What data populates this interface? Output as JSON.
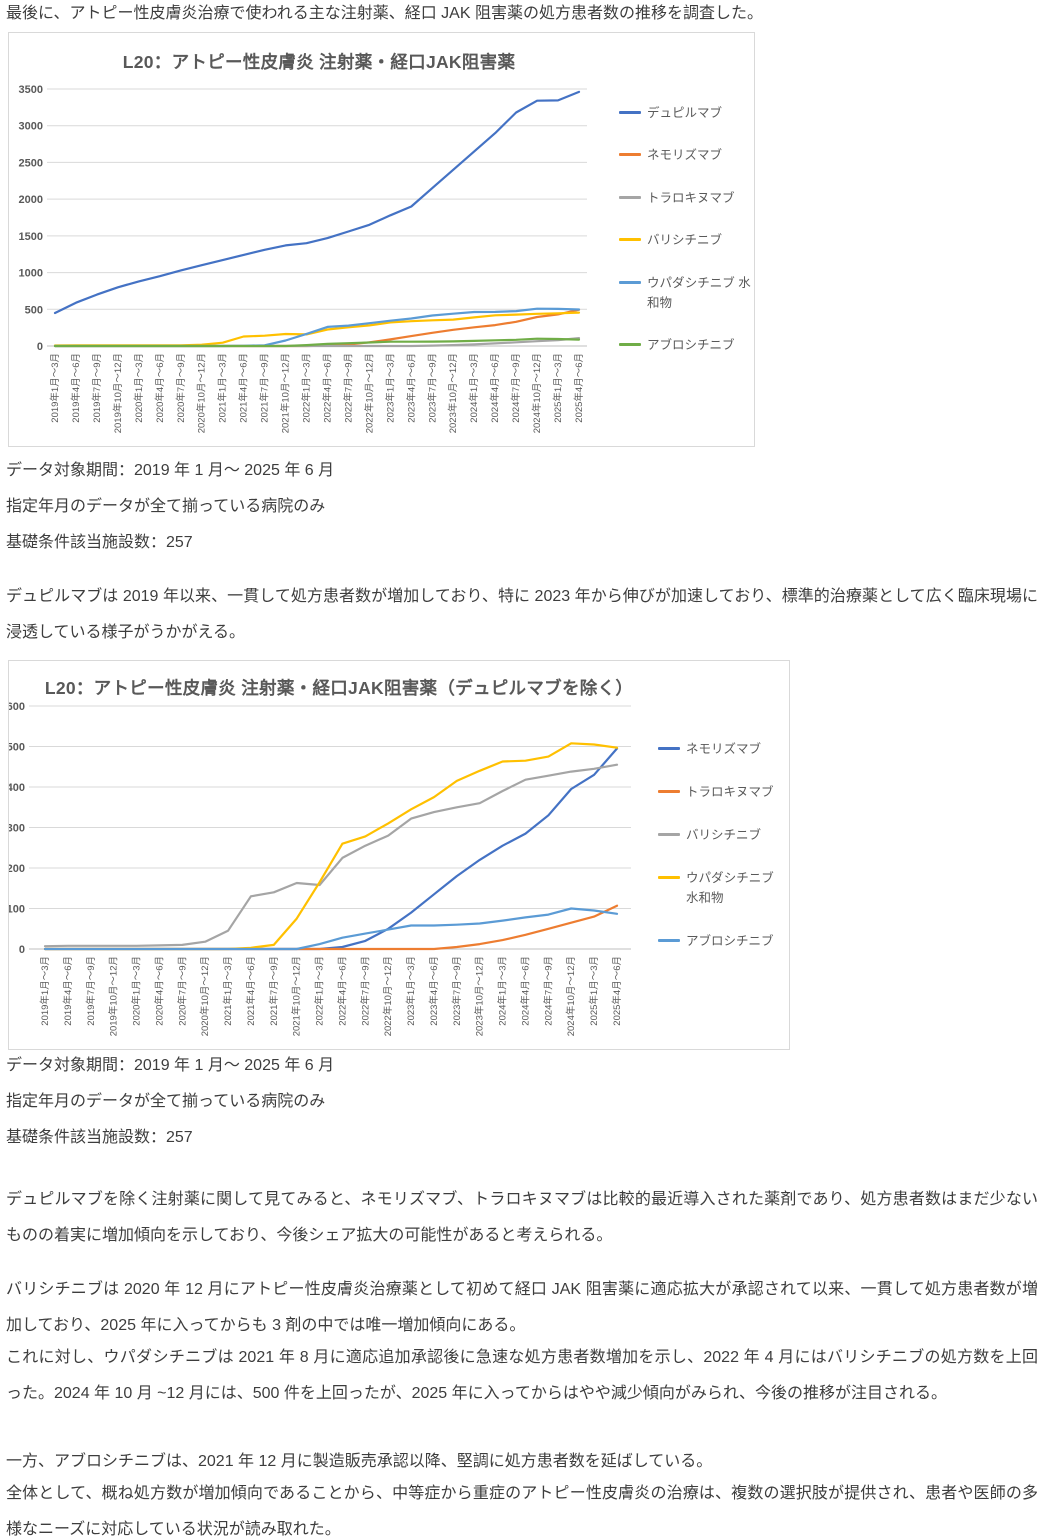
{
  "page": {
    "intro": "最後に、アトピー性皮膚炎治療で使われる主な注射薬、経口 JAK 阻害薬の処方患者数の推移を調査した。",
    "caption": {
      "period": "データ対象期間：2019 年 1 月～ 2025 年 6 月",
      "filter": "指定年月のデータが全て揃っている病院のみ",
      "facilities": "基礎条件該当施設数：257"
    },
    "para_dupilumab": "デュピルマブは 2019 年以来、一貫して処方患者数が増加しており、特に 2023 年から伸びが加速しており、標準的治療薬として広く臨床現場に浸透している様子がうかがえる。",
    "para_exclude": "デュピルマブを除く注射薬に関して見てみると、ネモリズマブ、トラロキヌマブは比較的最近導入された薬剤であり、処方患者数はまだ少ないものの着実に増加傾向を示しており、今後シェア拡大の可能性があると考えられる。",
    "para_baricitinib": "バリシチニブは 2020 年 12 月にアトピー性皮膚炎治療薬として初めて経口 JAK 阻害薬に適応拡大が承認されて以来、一貫して処方患者数が増加しており、2025 年に入ってからも 3 剤の中では唯一増加傾向にある。",
    "para_upadacitinib": "これに対し、ウパダシチニブは 2021 年 8 月に適応追加承認後に急速な処方患者数増加を示し、2022 年 4 月にはバリシチニブの処方数を上回った。2024 年 10 月 ~12 月には、500 件を上回ったが、2025 年に入ってからはやや減少傾向がみられ、今後の推移が注目される。",
    "para_abrocitinib": "一方、アブロシチニブは、2021 年 12 月に製造販売承認以降、堅調に処方患者数を延ばしている。",
    "para_overall": "全体として、概ね処方数が増加傾向であることから、中等症から重症のアトピー性皮膚炎の治療は、複数の選択肢が提供され、患者や医師の多様なニーズに対応している状況が読み取れた。"
  },
  "chart_data": [
    {
      "type": "line",
      "title": "L20：アトピー性皮膚炎 注射薬・経口JAK阻害薬",
      "xlabel": "",
      "ylabel": "",
      "ylim": [
        0,
        3500
      ],
      "ytick": 500,
      "grid": true,
      "legend_position": "right",
      "categories": [
        "2019年1月～3月",
        "2019年4月～6月",
        "2019年7月～9月",
        "2019年10月～12月",
        "2020年1月～3月",
        "2020年4月～6月",
        "2020年7月～9月",
        "2020年10月～12月",
        "2021年1月～3月",
        "2021年4月～6月",
        "2021年7月～9月",
        "2021年10月～12月",
        "2022年1月～3月",
        "2022年4月～6月",
        "2022年7月～9月",
        "2022年10月～12月",
        "2023年1月～3月",
        "2023年4月～6月",
        "2023年7月～9月",
        "2023年10月～12月",
        "2024年1月～3月",
        "2024年4月～6月",
        "2024年7月～9月",
        "2024年10月～12月",
        "2025年1月～3月",
        "2025年4月～6月"
      ],
      "series": [
        {
          "name": "デュピルマブ",
          "color": "#4472C4",
          "values": [
            450,
            590,
            700,
            800,
            880,
            950,
            1030,
            1100,
            1170,
            1240,
            1310,
            1370,
            1400,
            1470,
            1560,
            1650,
            1780,
            1900,
            2150,
            2400,
            2650,
            2900,
            3180,
            3340,
            3345,
            3460
          ]
        },
        {
          "name": "ネモリズマブ",
          "color": "#ED7D31",
          "values": [
            0,
            0,
            0,
            0,
            0,
            0,
            0,
            0,
            0,
            0,
            0,
            0,
            0,
            5,
            20,
            50,
            90,
            135,
            180,
            220,
            255,
            285,
            330,
            395,
            430,
            495
          ]
        },
        {
          "name": "トラロキヌマブ",
          "color": "#A5A5A5",
          "values": [
            0,
            0,
            0,
            0,
            0,
            0,
            0,
            0,
            0,
            0,
            0,
            0,
            0,
            0,
            0,
            0,
            0,
            0,
            5,
            12,
            22,
            35,
            50,
            65,
            80,
            107
          ]
        },
        {
          "name": "バリシチニブ",
          "color": "#FFC000",
          "values": [
            7,
            8,
            8,
            8,
            8,
            9,
            10,
            18,
            45,
            130,
            140,
            163,
            158,
            225,
            255,
            280,
            322,
            338,
            350,
            360,
            390,
            418,
            428,
            438,
            445,
            455
          ]
        },
        {
          "name": "ウパダシチニブ 水和物",
          "color": "#5B9BD5",
          "values": [
            0,
            0,
            0,
            0,
            0,
            0,
            0,
            0,
            0,
            3,
            10,
            75,
            165,
            260,
            278,
            310,
            345,
            375,
            415,
            440,
            463,
            465,
            475,
            508,
            505,
            497
          ]
        },
        {
          "name": "アブロシチニブ",
          "color": "#70AD47",
          "values": [
            0,
            0,
            0,
            0,
            0,
            0,
            0,
            0,
            0,
            0,
            0,
            0,
            12,
            28,
            38,
            48,
            58,
            58,
            60,
            63,
            70,
            78,
            85,
            100,
            95,
            87
          ]
        }
      ]
    },
    {
      "type": "line",
      "title": "L20：アトピー性皮膚炎 注射薬・経口JAK阻害薬（デュピルマブを除く）",
      "xlabel": "",
      "ylabel": "",
      "ylim": [
        0,
        600
      ],
      "ytick": 100,
      "grid": true,
      "legend_position": "right",
      "categories": [
        "2019年1月～3月",
        "2019年4月～6月",
        "2019年7月～9月",
        "2019年10月～12月",
        "2020年1月～3月",
        "2020年4月～6月",
        "2020年7月～9月",
        "2020年10月～12月",
        "2021年1月～3月",
        "2021年4月～6月",
        "2021年7月～9月",
        "2021年10月～12月",
        "2022年1月～3月",
        "2022年4月～6月",
        "2022年7月～9月",
        "2022年10月～12月",
        "2023年1月～3月",
        "2023年4月～6月",
        "2023年7月～9月",
        "2023年10月～12月",
        "2024年1月～3月",
        "2024年4月～6月",
        "2024年7月～9月",
        "2024年10月～12月",
        "2025年1月～3月",
        "2025年4月～6月"
      ],
      "series": [
        {
          "name": "ネモリズマブ",
          "color": "#4472C4",
          "values": [
            0,
            0,
            0,
            0,
            0,
            0,
            0,
            0,
            0,
            0,
            0,
            0,
            0,
            5,
            20,
            50,
            90,
            135,
            180,
            220,
            255,
            285,
            330,
            395,
            430,
            495
          ]
        },
        {
          "name": "トラロキヌマブ",
          "color": "#ED7D31",
          "values": [
            0,
            0,
            0,
            0,
            0,
            0,
            0,
            0,
            0,
            0,
            0,
            0,
            0,
            0,
            0,
            0,
            0,
            0,
            5,
            12,
            22,
            35,
            50,
            65,
            80,
            107
          ]
        },
        {
          "name": "バリシチニブ",
          "color": "#A5A5A5",
          "values": [
            7,
            8,
            8,
            8,
            8,
            9,
            10,
            18,
            45,
            130,
            140,
            163,
            158,
            225,
            255,
            280,
            322,
            338,
            350,
            360,
            390,
            418,
            428,
            438,
            445,
            455
          ]
        },
        {
          "name": "ウパダシチニブ 水和物",
          "color": "#FFC000",
          "values": [
            0,
            0,
            0,
            0,
            0,
            0,
            0,
            0,
            0,
            3,
            10,
            75,
            165,
            260,
            278,
            310,
            345,
            375,
            415,
            440,
            463,
            465,
            475,
            508,
            505,
            497
          ]
        },
        {
          "name": "アブロシチニブ",
          "color": "#5B9BD5",
          "values": [
            0,
            0,
            0,
            0,
            0,
            0,
            0,
            0,
            0,
            0,
            0,
            0,
            12,
            28,
            38,
            48,
            58,
            58,
            60,
            63,
            70,
            78,
            85,
            100,
            95,
            87
          ]
        }
      ]
    }
  ]
}
